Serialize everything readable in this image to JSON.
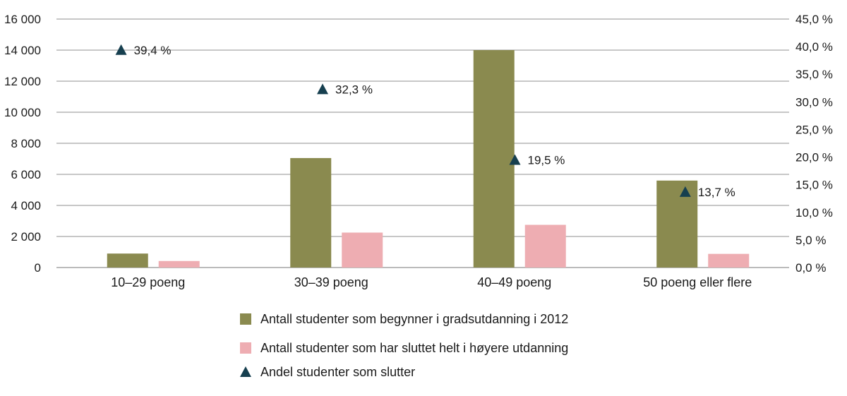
{
  "chart_data": {
    "type": "bar",
    "title": "",
    "xlabel": "",
    "ylabel": "",
    "categories": [
      "10–29 poeng",
      "30–39 poeng",
      "40–49 poeng",
      "50 poeng eller flere"
    ],
    "ylim": [
      0,
      16000
    ],
    "y_ticks": [
      "16 000",
      "14 000",
      "12 000",
      "10 000",
      "8 000",
      "6 000",
      "4 000",
      "2 000",
      "0"
    ],
    "y_tick_values": [
      16000,
      14000,
      12000,
      10000,
      8000,
      6000,
      4000,
      2000,
      0
    ],
    "y2lim": [
      0,
      45
    ],
    "y2_ticks": [
      "45,0 %",
      "40,0 %",
      "35,0 %",
      "30,0 %",
      "25,0 %",
      "20,0 %",
      "15,0 %",
      "10,0 %",
      "5,0 %",
      "0,0 %"
    ],
    "y2_tick_values": [
      45,
      40,
      35,
      30,
      25,
      20,
      15,
      10,
      5,
      0
    ],
    "grid": true,
    "legend_position": "bottom",
    "series": [
      {
        "name": "Antall studenter som begynner i gradsutdanning i 2012",
        "type": "bar",
        "axis": "left",
        "color": "#8a8a4f",
        "values": [
          900,
          7050,
          14000,
          5600
        ]
      },
      {
        "name": "Antall studenter som har sluttet  helt i høyere utdanning",
        "type": "bar",
        "axis": "left",
        "color": "#eeadb2",
        "values": [
          420,
          2250,
          2750,
          880
        ]
      },
      {
        "name": "Andel studenter som slutter",
        "type": "scatter",
        "marker": "triangle",
        "axis": "right",
        "color": "#163f4f",
        "values": [
          39.4,
          32.3,
          19.5,
          13.7
        ],
        "labels": [
          "39,4 %",
          "32,3 %",
          "19,5 %",
          "13,7 %"
        ]
      }
    ]
  }
}
